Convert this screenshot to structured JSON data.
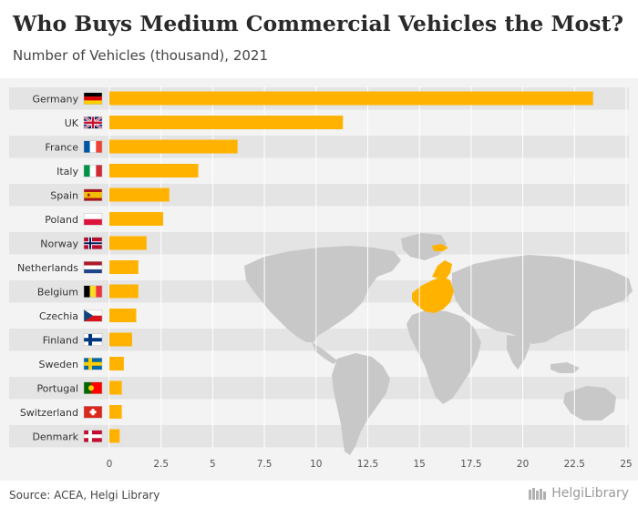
{
  "header": {
    "title": "Who Buys Medium Commercial Vehicles the Most?",
    "subtitle": "Number of Vehicles (thousand), 2021"
  },
  "footer": {
    "source": "Source: ACEA, Helgi Library",
    "brand": "HelgiLibrary"
  },
  "colors": {
    "bar": "#FFB300",
    "row_band": "#e4e4e4",
    "map_land": "#c8c8c8",
    "map_highlight": "#FFB300",
    "grid": "#ffffff",
    "label": "#333333"
  },
  "chart_data": {
    "type": "bar",
    "orientation": "horizontal",
    "categories": [
      "Germany",
      "UK",
      "France",
      "Italy",
      "Spain",
      "Poland",
      "Norway",
      "Netherlands",
      "Belgium",
      "Czechia",
      "Finland",
      "Sweden",
      "Portugal",
      "Switzerland",
      "Denmark"
    ],
    "flag_icons": [
      "flag-germany",
      "flag-uk",
      "flag-france",
      "flag-italy",
      "flag-spain",
      "flag-poland",
      "flag-norway",
      "flag-netherlands",
      "flag-belgium",
      "flag-czechia",
      "flag-finland",
      "flag-sweden",
      "flag-portugal",
      "flag-switzerland",
      "flag-denmark"
    ],
    "values": [
      23.4,
      11.3,
      6.2,
      4.3,
      2.9,
      2.6,
      1.8,
      1.4,
      1.4,
      1.3,
      1.1,
      0.7,
      0.6,
      0.6,
      0.5
    ],
    "xlim": [
      0,
      25
    ],
    "xticks": [
      "0",
      "2.5",
      "5",
      "7.5",
      "10",
      "12.5",
      "15",
      "17.5",
      "20",
      "22.5",
      "25"
    ],
    "grid": true,
    "background_map": "world map with highlighted Europe"
  }
}
